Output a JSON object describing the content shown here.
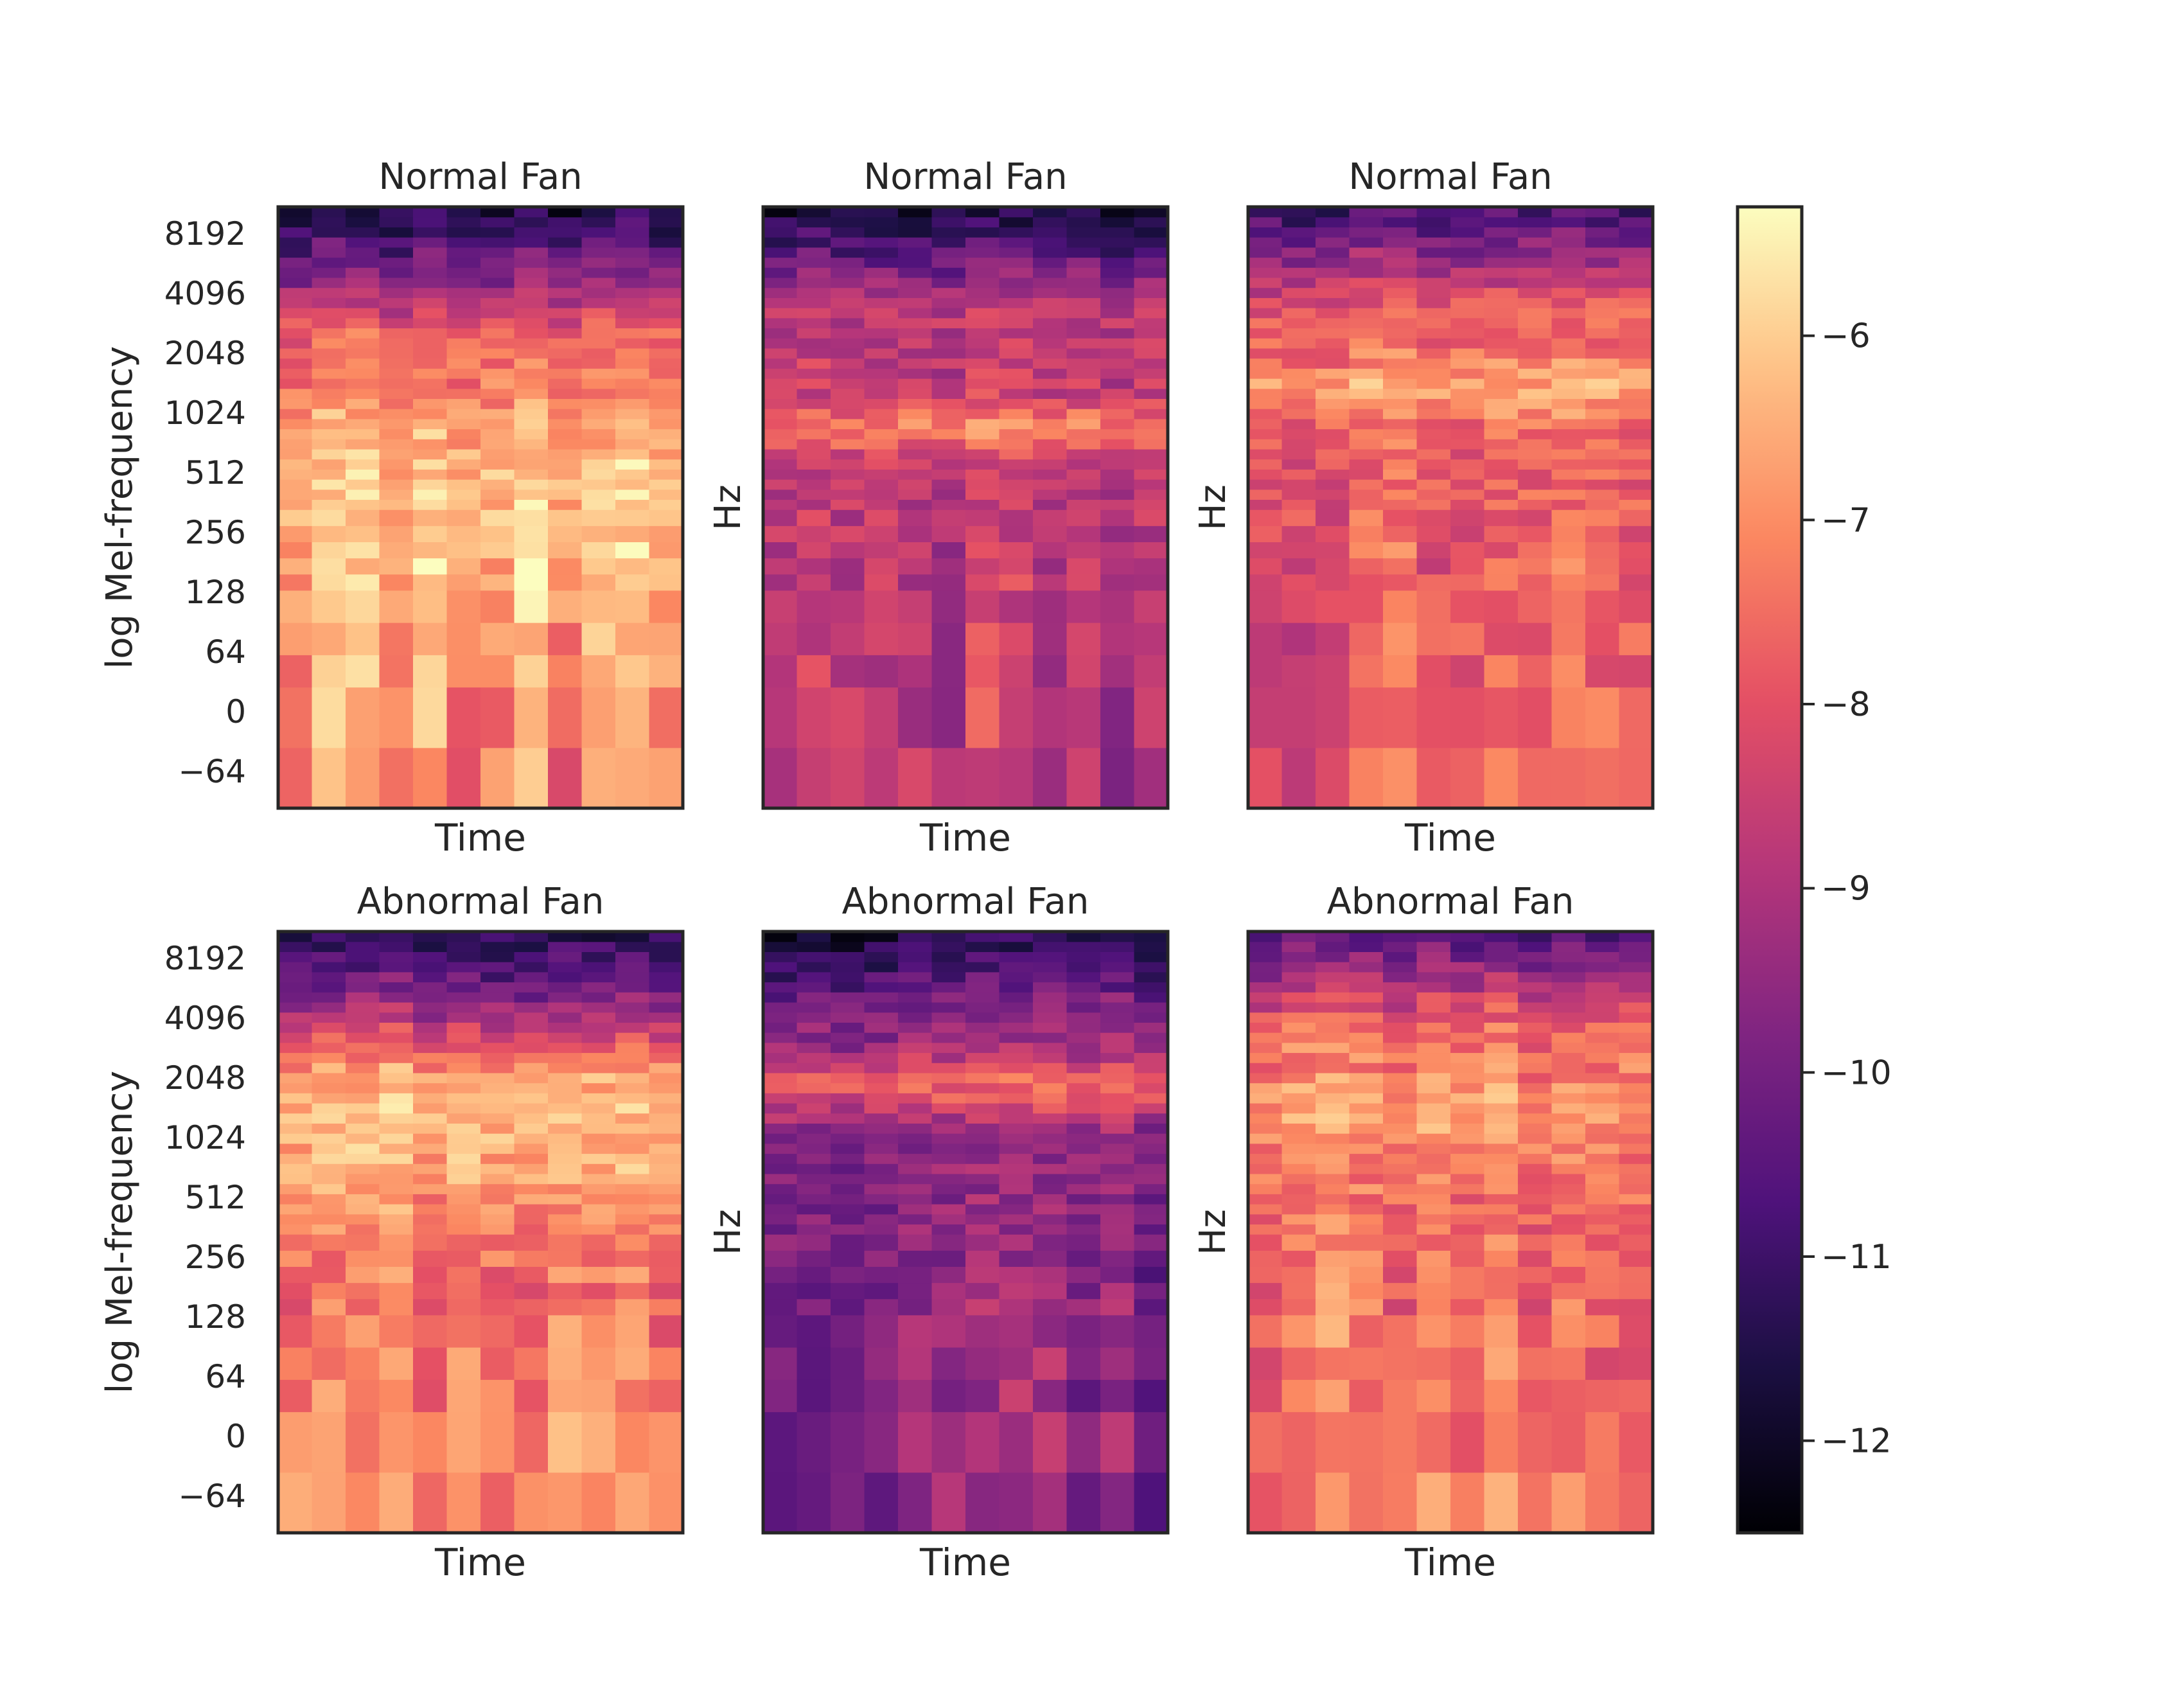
{
  "chart_data": [
    {
      "type": "heatmap",
      "title": "Normal Fan",
      "xlabel": "Time",
      "ylabel": "log Mel-frequency",
      "yticks": [
        "8192",
        "4096",
        "2048",
        "1024",
        "512",
        "256",
        "128",
        "64",
        "0",
        "−64"
      ],
      "seed": 11,
      "base": "fanA"
    },
    {
      "type": "heatmap",
      "title": "Normal Fan",
      "xlabel": "Time",
      "ylabel": "Hz",
      "yticks": [],
      "seed": 23,
      "base": "fanB"
    },
    {
      "type": "heatmap",
      "title": "Normal Fan",
      "xlabel": "Time",
      "ylabel": "Hz",
      "yticks": [],
      "seed": 37,
      "base": "fanC"
    },
    {
      "type": "heatmap",
      "title": "Abnormal Fan",
      "xlabel": "Time",
      "ylabel": "log Mel-frequency",
      "yticks": [
        "8192",
        "4096",
        "2048",
        "1024",
        "512",
        "256",
        "128",
        "64",
        "0",
        "−64"
      ],
      "seed": 41,
      "base": "fanD"
    },
    {
      "type": "heatmap",
      "title": "Abnormal Fan",
      "xlabel": "Time",
      "ylabel": "Hz",
      "yticks": [],
      "seed": 53,
      "base": "fanE"
    },
    {
      "type": "heatmap",
      "title": "Abnormal Fan",
      "xlabel": "Time",
      "ylabel": "Hz",
      "yticks": [],
      "seed": 67,
      "base": "fanF"
    }
  ],
  "colorbar": {
    "cmap": "magma",
    "range": [
      -12.5,
      -5.3
    ],
    "ticks": [
      -6,
      -7,
      -8,
      -9,
      -10,
      -11,
      -12
    ],
    "tick_labels": [
      "−6",
      "−7",
      "−8",
      "−9",
      "−10",
      "−11",
      "−12"
    ]
  }
}
